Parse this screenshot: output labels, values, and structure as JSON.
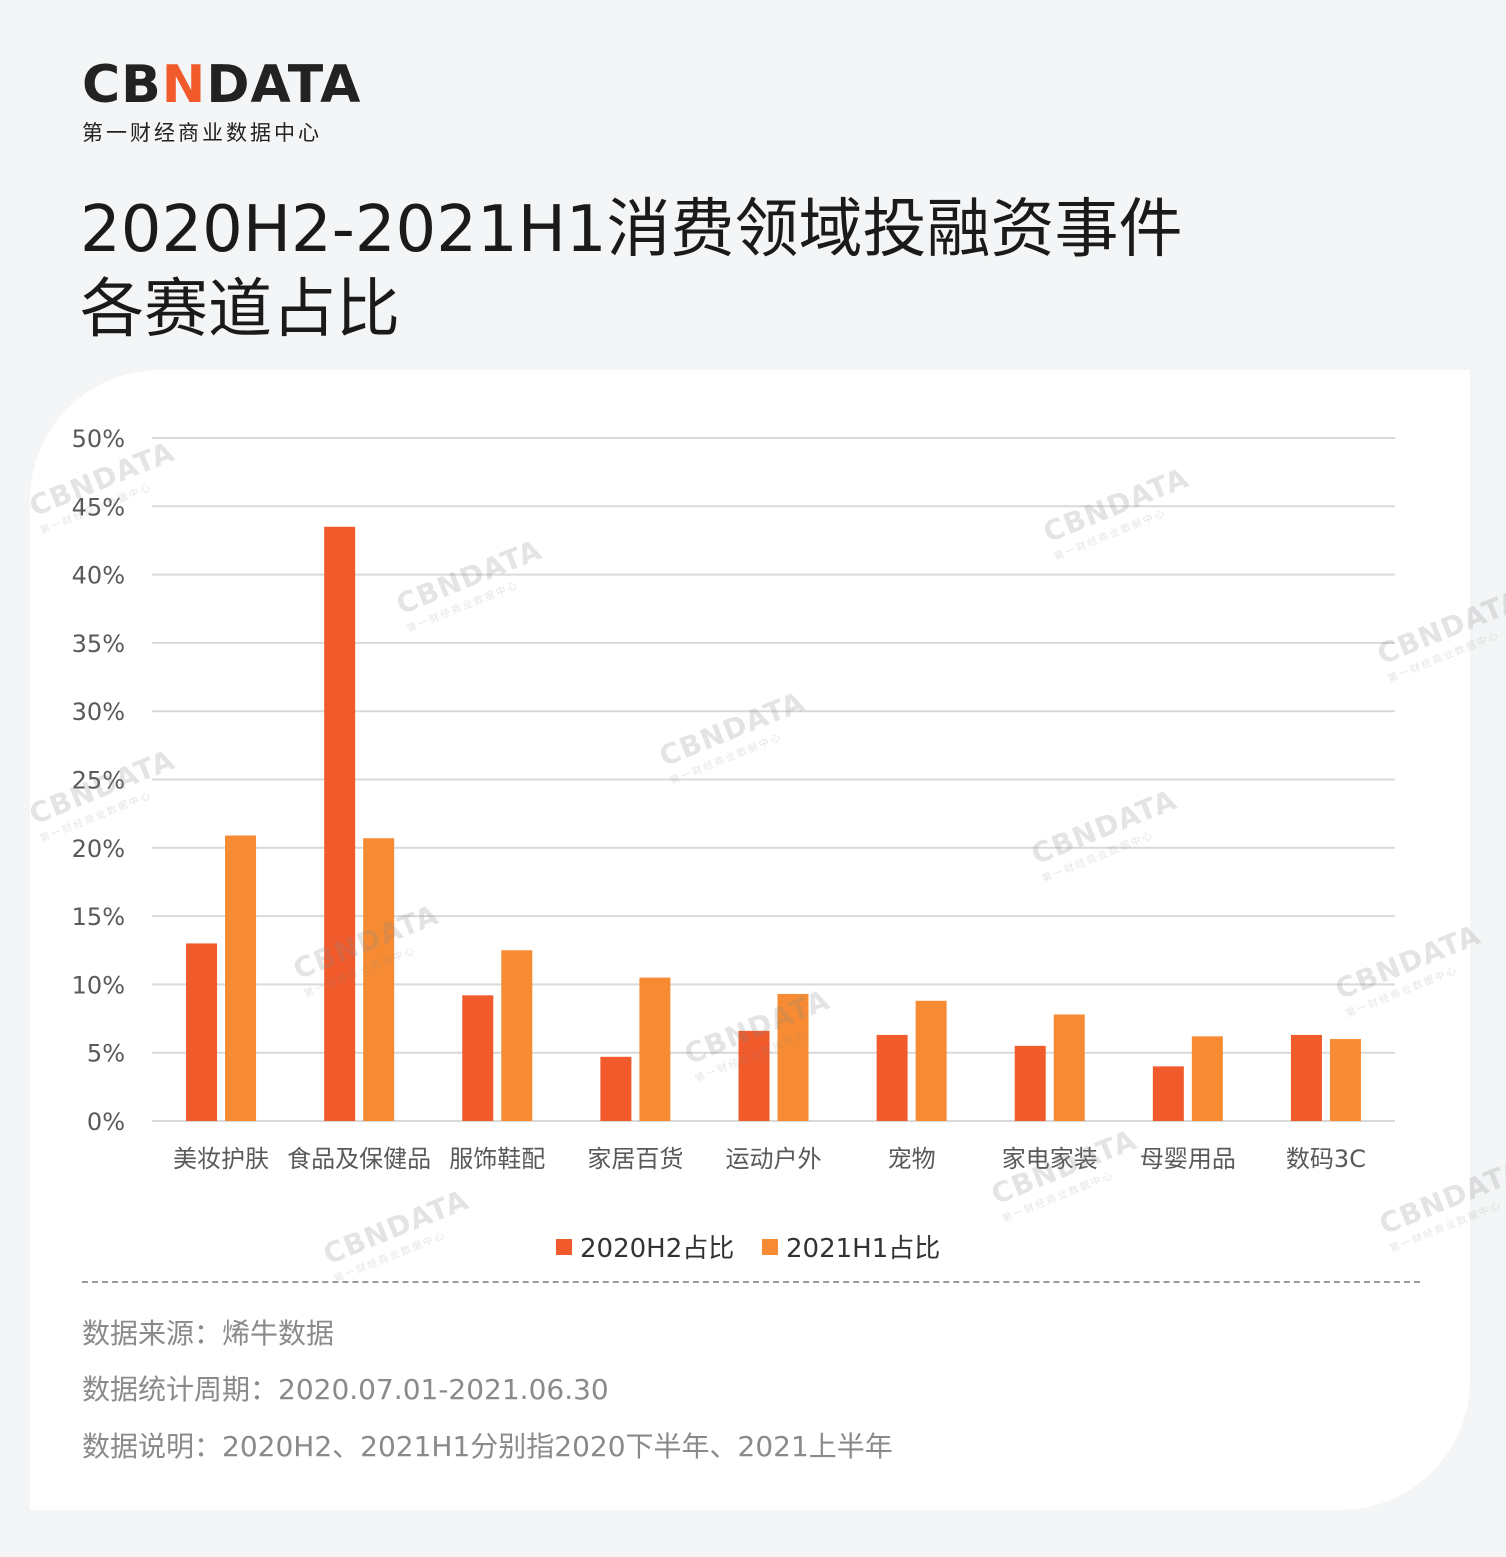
{
  "logo": {
    "text_before": "CB",
    "text_mark": "N",
    "text_after": "DATA",
    "subtitle": "第一财经商业数据中心"
  },
  "title_line1": "2020H2-2021H1消费领域投融资事件",
  "title_line2": "各赛道占比",
  "watermark": {
    "main": "CBNDATA",
    "sub": "第一财经商业数据中心"
  },
  "colors": {
    "series1": "#f15a2b",
    "series2": "#f68b33",
    "grid": "#d9d9d9",
    "axis_text": "#595959"
  },
  "chart_data": {
    "type": "bar",
    "title": "",
    "xlabel": "",
    "ylabel": "",
    "ylim": [
      0,
      0.5
    ],
    "yticks": [
      0,
      0.05,
      0.1,
      0.15,
      0.2,
      0.25,
      0.3,
      0.35,
      0.4,
      0.45,
      0.5
    ],
    "ytick_labels": [
      "0%",
      "5%",
      "10%",
      "15%",
      "20%",
      "25%",
      "30%",
      "35%",
      "40%",
      "45%",
      "50%"
    ],
    "grid": true,
    "legend_position": "bottom",
    "categories": [
      "美妆护肤",
      "食品及保健品",
      "服饰鞋配",
      "家居百货",
      "运动户外",
      "宠物",
      "家电家装",
      "母婴用品",
      "数码3C"
    ],
    "series": [
      {
        "name": "2020H2占比",
        "values": [
          0.13,
          0.435,
          0.092,
          0.047,
          0.066,
          0.063,
          0.055,
          0.04,
          0.063
        ]
      },
      {
        "name": "2021H1占比",
        "values": [
          0.209,
          0.207,
          0.125,
          0.105,
          0.093,
          0.088,
          0.078,
          0.062,
          0.06
        ]
      }
    ]
  },
  "notes": {
    "source": "数据来源：烯牛数据",
    "period": "数据统计周期：2020.07.01-2021.06.30",
    "explanation": "数据说明：2020H2、2021H1分别指2020下半年、2021上半年"
  }
}
